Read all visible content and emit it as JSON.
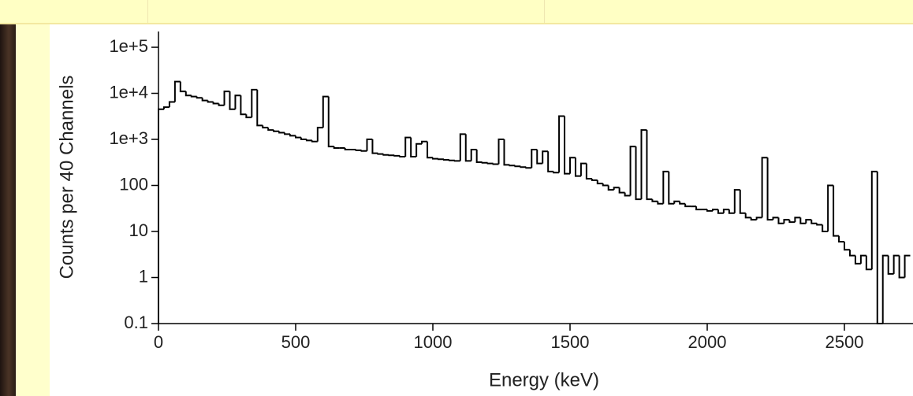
{
  "chart_data": {
    "type": "histogram",
    "xlabel": "Energy (keV)",
    "ylabel": "Counts per 40 Channels",
    "ylog": true,
    "color": "#000000",
    "bins": [
      0,
      20,
      40,
      60,
      80,
      100,
      120,
      140,
      160,
      180,
      200,
      220,
      240,
      260,
      280,
      300,
      320,
      340,
      360,
      380,
      400,
      420,
      440,
      460,
      480,
      500,
      520,
      540,
      560,
      580,
      600,
      620,
      640,
      660,
      680,
      700,
      720,
      740,
      760,
      780,
      800,
      820,
      840,
      860,
      880,
      900,
      920,
      940,
      960,
      980,
      1000,
      1020,
      1040,
      1060,
      1080,
      1100,
      1120,
      1140,
      1160,
      1180,
      1200,
      1220,
      1240,
      1260,
      1280,
      1300,
      1320,
      1340,
      1360,
      1380,
      1400,
      1420,
      1440,
      1460,
      1480,
      1500,
      1520,
      1540,
      1560,
      1580,
      1600,
      1620,
      1640,
      1660,
      1680,
      1700,
      1720,
      1740,
      1760,
      1780,
      1800,
      1820,
      1840,
      1860,
      1880,
      1900,
      1920,
      1940,
      1960,
      1980,
      2000,
      2020,
      2040,
      2060,
      2080,
      2100,
      2120,
      2140,
      2160,
      2180,
      2200,
      2220,
      2240,
      2260,
      2280,
      2300,
      2320,
      2340,
      2360,
      2380,
      2400,
      2420,
      2440,
      2460,
      2480,
      2500,
      2520,
      2540,
      2560,
      2580,
      2600,
      2620,
      2640,
      2660,
      2680,
      2700,
      2720,
      2740
    ],
    "values": [
      4500,
      5000,
      6500,
      18000,
      11000,
      9000,
      8500,
      8000,
      7000,
      6500,
      6000,
      5500,
      11000,
      4500,
      9000,
      3500,
      3000,
      12000,
      2000,
      1800,
      1600,
      1500,
      1400,
      1300,
      1200,
      1100,
      1000,
      950,
      900,
      1800,
      8500,
      700,
      650,
      650,
      600,
      600,
      580,
      560,
      1000,
      500,
      480,
      460,
      450,
      440,
      420,
      1100,
      420,
      800,
      900,
      400,
      380,
      370,
      360,
      350,
      340,
      1300,
      340,
      600,
      320,
      310,
      300,
      290,
      1000,
      280,
      270,
      260,
      250,
      240,
      600,
      300,
      550,
      200,
      190,
      3200,
      180,
      400,
      160,
      300,
      140,
      130,
      110,
      100,
      80,
      90,
      70,
      60,
      700,
      50,
      1600,
      50,
      45,
      40,
      200,
      40,
      45,
      40,
      35,
      35,
      30,
      30,
      28,
      30,
      25,
      30,
      25,
      80,
      25,
      20,
      18,
      20,
      400,
      18,
      20,
      15,
      18,
      16,
      20,
      15,
      18,
      15,
      14,
      10,
      100,
      8,
      6,
      4,
      3,
      2,
      3,
      1.5,
      200,
      0.1,
      3,
      1.2,
      3,
      1,
      3
    ],
    "xlim": [
      0,
      2750
    ],
    "xticks": [
      0,
      500,
      1000,
      1500,
      2000,
      2500
    ],
    "ylim": [
      0.1,
      220000
    ],
    "yticks": [
      0.1,
      1,
      10,
      100,
      {
        "value": 1000,
        "label": "1e+3"
      },
      {
        "value": 10000,
        "label": "1e+4"
      },
      {
        "value": 100000,
        "label": "1e+5"
      }
    ]
  }
}
